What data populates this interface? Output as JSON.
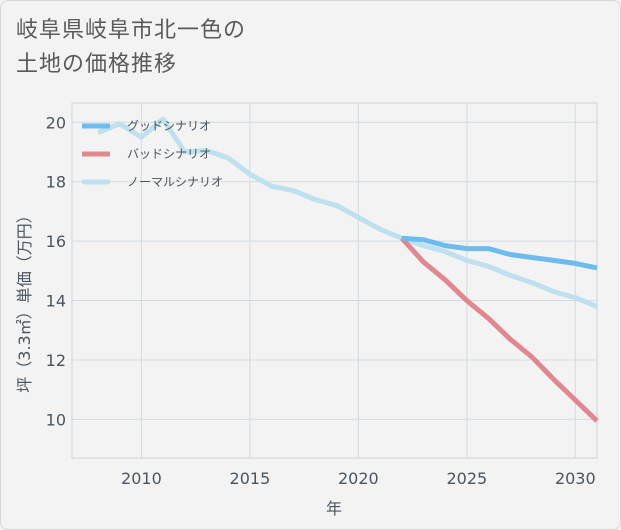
{
  "title_line1": "岐阜県岐阜市北一色の",
  "title_line2": "土地の価格推移",
  "chart_data": {
    "type": "line",
    "xlabel": "年",
    "ylabel": "坪（3.3㎡）単価（万円）",
    "xlim": [
      2006.8,
      2031
    ],
    "ylim": [
      8.7,
      20.65
    ],
    "xticks": [
      2010,
      2015,
      2020,
      2025,
      2030
    ],
    "yticks": [
      10,
      12,
      14,
      16,
      18,
      20
    ],
    "grid": true,
    "legend_position": "top-left",
    "series": [
      {
        "name": "グッドシナリオ",
        "color": "#6dbcee",
        "x": [
          2022,
          2023,
          2024,
          2025,
          2026,
          2027,
          2028,
          2029,
          2030,
          2031
        ],
        "y": [
          16.1,
          16.05,
          15.85,
          15.75,
          15.75,
          15.55,
          15.45,
          15.35,
          15.25,
          15.1
        ]
      },
      {
        "name": "バッドシナリオ",
        "color": "#e0888f",
        "x": [
          2022,
          2023,
          2024,
          2025,
          2026,
          2027,
          2028,
          2029,
          2030,
          2031
        ],
        "y": [
          16.1,
          15.3,
          14.7,
          14.0,
          13.4,
          12.7,
          12.1,
          11.35,
          10.65,
          9.95
        ]
      },
      {
        "name": "ノーマルシナリオ",
        "color": "#bfe0ee",
        "x": [
          2008,
          2009,
          2010,
          2011,
          2012,
          2013,
          2014,
          2015,
          2016,
          2017,
          2018,
          2019,
          2020,
          2021,
          2022,
          2023,
          2024,
          2025,
          2026,
          2027,
          2028,
          2029,
          2030,
          2031
        ],
        "y": [
          19.65,
          19.95,
          19.5,
          20.1,
          19.0,
          19.05,
          18.8,
          18.25,
          17.85,
          17.7,
          17.4,
          17.2,
          16.8,
          16.4,
          16.1,
          15.85,
          15.65,
          15.35,
          15.15,
          14.85,
          14.6,
          14.3,
          14.1,
          13.8
        ]
      }
    ]
  }
}
